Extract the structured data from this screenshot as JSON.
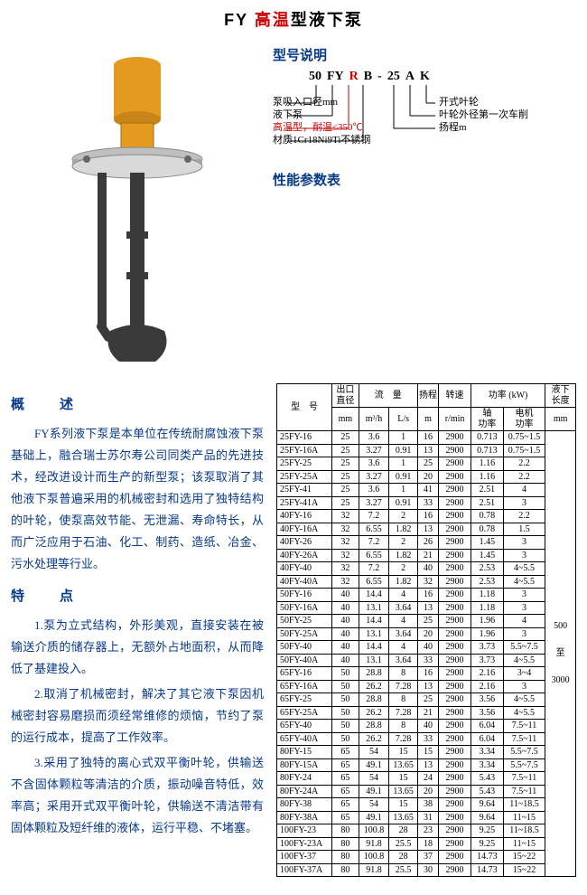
{
  "title_prefix": "FY ",
  "title_red": "高温",
  "title_suffix": "型液下泵",
  "model_heading": "型号说明",
  "model_tokens": [
    "50",
    "FY",
    "R",
    "B",
    "-",
    "25",
    "A",
    "K"
  ],
  "model_red_idx": 2,
  "model_labels": {
    "l0": "泵吸入口径mm",
    "l1": "液下泵",
    "l2": "高温型，耐温≤350℃",
    "l3": "材质1Cr18Ni9Ti不锈钢",
    "r0": "开式叶轮",
    "r1": "叶轮外径第一次车削",
    "r2": "扬程m"
  },
  "perf_heading": "性能参数表",
  "columns": {
    "model": "型　号",
    "dia": "出口\n直径",
    "dia_unit": "mm",
    "flow": "流　量",
    "flow_u1": "m³/h",
    "flow_u2": "L/s",
    "head": "扬程",
    "head_unit": "m",
    "speed": "转速",
    "speed_unit": "r/min",
    "power": "功率 (kW)",
    "power_shaft": "轴\n功率",
    "power_motor": "电机\n功率",
    "len": "液下\n长度",
    "len_unit": "mm"
  },
  "len_text_lines": [
    "500",
    "至",
    "3000"
  ],
  "rows": [
    [
      "25FY-16",
      "25",
      "3.6",
      "1",
      "16",
      "2900",
      "0.713",
      "0.75~1.5"
    ],
    [
      "25FY-16A",
      "25",
      "3.27",
      "0.91",
      "13",
      "2900",
      "0.713",
      "0.75~1.5"
    ],
    [
      "25FY-25",
      "25",
      "3.6",
      "1",
      "25",
      "2900",
      "1.16",
      "2.2"
    ],
    [
      "25FY-25A",
      "25",
      "3.27",
      "0.91",
      "20",
      "2900",
      "1.16",
      "2.2"
    ],
    [
      "25FY-41",
      "25",
      "3.6",
      "1",
      "41",
      "2900",
      "2.51",
      "4"
    ],
    [
      "25FY-41A",
      "25",
      "3.27",
      "0.91",
      "33",
      "2900",
      "2.51",
      "3"
    ],
    [
      "40FY-16",
      "32",
      "7.2",
      "2",
      "16",
      "2900",
      "0.78",
      "2.2"
    ],
    [
      "40FY-16A",
      "32",
      "6.55",
      "1.82",
      "13",
      "2900",
      "0.78",
      "1.5"
    ],
    [
      "40FY-26",
      "32",
      "7.2",
      "2",
      "26",
      "2900",
      "1.45",
      "3"
    ],
    [
      "40FY-26A",
      "32",
      "6.55",
      "1.82",
      "21",
      "2900",
      "1.45",
      "3"
    ],
    [
      "40FY-40",
      "32",
      "7.2",
      "2",
      "40",
      "2900",
      "2.53",
      "4~5.5"
    ],
    [
      "40FY-40A",
      "32",
      "6.55",
      "1.82",
      "32",
      "2900",
      "2.53",
      "4~5.5"
    ],
    [
      "50FY-16",
      "40",
      "14.4",
      "4",
      "16",
      "2900",
      "1.18",
      "3"
    ],
    [
      "50FY-16A",
      "40",
      "13.1",
      "3.64",
      "13",
      "2900",
      "1.18",
      "3"
    ],
    [
      "50FY-25",
      "40",
      "14.4",
      "4",
      "25",
      "2900",
      "1.96",
      "4"
    ],
    [
      "50FY-25A",
      "40",
      "13.1",
      "3.64",
      "20",
      "2900",
      "1.96",
      "3"
    ],
    [
      "50FY-40",
      "40",
      "14.4",
      "4",
      "40",
      "2900",
      "3.73",
      "5.5~7.5"
    ],
    [
      "50FY-40A",
      "40",
      "13.1",
      "3.64",
      "33",
      "2900",
      "3.73",
      "4~5.5"
    ],
    [
      "65FY-16",
      "50",
      "28.8",
      "8",
      "16",
      "2900",
      "2.16",
      "3~4"
    ],
    [
      "65FY-16A",
      "50",
      "26.2",
      "7.28",
      "13",
      "2900",
      "2.16",
      "3"
    ],
    [
      "65FY-25",
      "50",
      "28.8",
      "8",
      "25",
      "2900",
      "3.56",
      "4~5.5"
    ],
    [
      "65FY-25A",
      "50",
      "26.2",
      "7.28",
      "21",
      "2900",
      "3.56",
      "4~5.5"
    ],
    [
      "65FY-40",
      "50",
      "28.8",
      "8",
      "40",
      "2900",
      "6.04",
      "7.5~11"
    ],
    [
      "65FY-40A",
      "50",
      "26.2",
      "7.28",
      "33",
      "2900",
      "6.04",
      "7.5~11"
    ],
    [
      "80FY-15",
      "65",
      "54",
      "15",
      "15",
      "2900",
      "3.34",
      "5.5~7.5"
    ],
    [
      "80FY-15A",
      "65",
      "49.1",
      "13.65",
      "13",
      "2900",
      "3.34",
      "5.5~7.5"
    ],
    [
      "80FY-24",
      "65",
      "54",
      "15",
      "24",
      "2900",
      "5.43",
      "7.5~11"
    ],
    [
      "80FY-24A",
      "65",
      "49.1",
      "13.65",
      "20",
      "2900",
      "5.43",
      "7.5~11"
    ],
    [
      "80FY-38",
      "65",
      "54",
      "15",
      "38",
      "2900",
      "9.64",
      "11~18.5"
    ],
    [
      "80FY-38A",
      "65",
      "49.1",
      "13.65",
      "31",
      "2900",
      "9.64",
      "11~15"
    ],
    [
      "100FY-23",
      "80",
      "100.8",
      "28",
      "23",
      "2900",
      "9.25",
      "11~18.5"
    ],
    [
      "100FY-23A",
      "80",
      "91.8",
      "25.5",
      "18",
      "2900",
      "9.25",
      "11~15"
    ],
    [
      "100FY-37",
      "80",
      "100.8",
      "28",
      "37",
      "2900",
      "14.73",
      "15~22"
    ],
    [
      "100FY-37A",
      "80",
      "91.8",
      "25.5",
      "30",
      "2900",
      "14.73",
      "15~22"
    ]
  ],
  "desc_h": "概　述",
  "desc_p": "FY系列液下泵是本单位在传统耐腐蚀液下泵基础上，融合瑞士苏尔寿公司同类产品的先进技术，经改进设计而生产的新型泵；该泵取消了其他液下泵普遍采用的机械密封和选用了独特结构的叶轮，使泵高效节能、无泄漏、寿命特长，从而广泛应用于石油、化工、制药、造纸、冶金、污水处理等行业。",
  "feat_h": "特　点",
  "feat_p1": "1.泵为立式结构，外形美观，直接安装在被输送介质的储存器上，无额外占地面积，从而降低了基建投入。",
  "feat_p2": "2.取消了机械密封，解决了其它液下泵因机械密封容易磨损而须经常维修的烦恼，节约了泵的运行成本，提高了工作效率。",
  "feat_p3": "3.采用了独特的离心式双平衡叶轮，供输送不含固体颗粒等清洁的介质，振动噪音特低，效率高；采用开式双平衡叶轮，供输送不清洁带有固体颗粒及短纤维的液体，运行平稳、不堵塞。",
  "colors": {
    "blue": "#073a8a",
    "red": "#c00",
    "pump_body": "#e39a1f",
    "pump_dark": "#3a3a3a"
  }
}
